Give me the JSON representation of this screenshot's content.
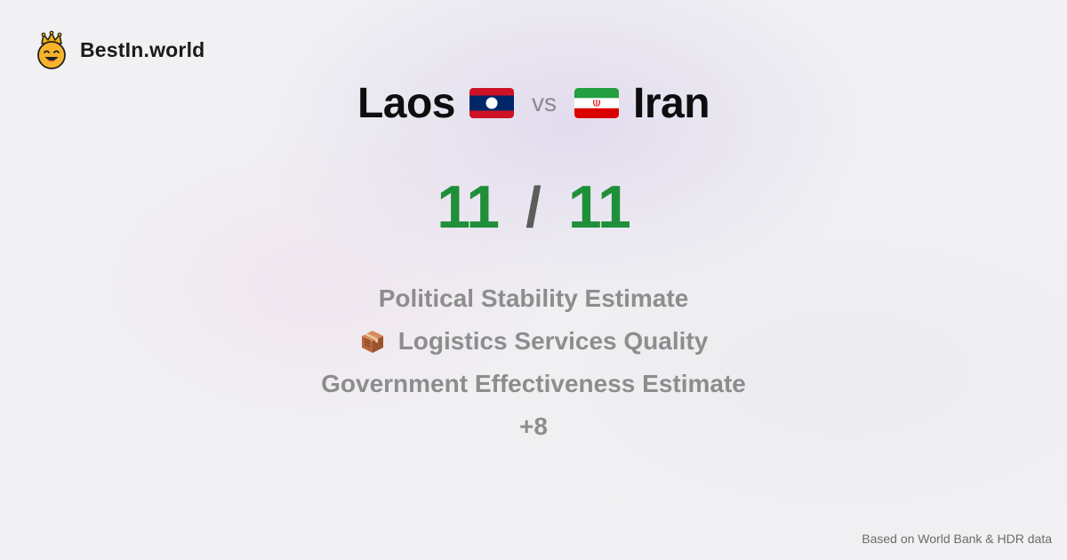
{
  "brand": {
    "name": "BestIn.world"
  },
  "comparison": {
    "left_country": "Laos",
    "vs_label": "vs",
    "right_country": "Iran"
  },
  "score": {
    "left": "11",
    "separator": "/",
    "right": "11"
  },
  "metrics": [
    "Political Stability Estimate",
    "Logistics Services Quality",
    "Government Effectiveness Estimate",
    "+8"
  ],
  "footer": {
    "source": "Based on World Bank & HDR data"
  },
  "colors": {
    "score_green": "#1f8f3a",
    "metric_gray": "#8d8d8d",
    "laos_red": "#ce1126",
    "laos_blue": "#002868",
    "iran_green": "#239f40",
    "iran_red": "#da0000"
  }
}
